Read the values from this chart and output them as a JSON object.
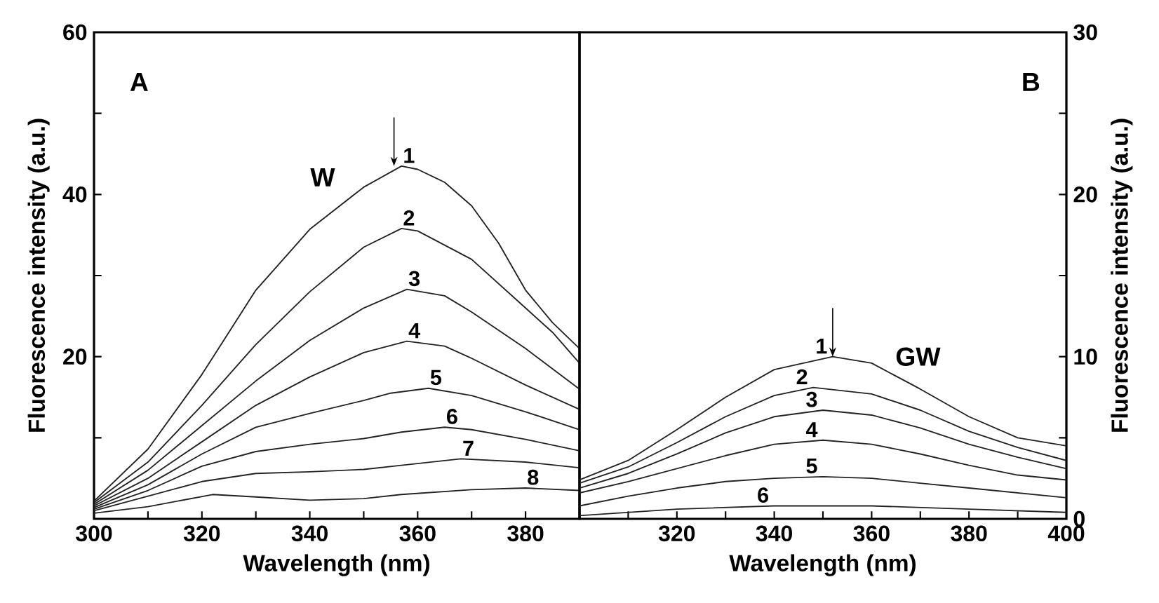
{
  "chart_data": [
    {
      "type": "line",
      "xlabel": "Wavelength (nm)",
      "ylabel": "Fluorescence intensity (a.u.)",
      "annotations": [
        "A",
        "W"
      ],
      "xlim": [
        300,
        390
      ],
      "ylim": [
        0,
        60
      ],
      "xticks": [
        300,
        {
          "value": 310,
          "label": null
        },
        320,
        {
          "value": 330,
          "label": null
        },
        340,
        {
          "value": 350,
          "label": null
        },
        360,
        {
          "value": 370,
          "label": null
        },
        380
      ],
      "yticks": [
        {
          "value": 0,
          "label": null
        },
        {
          "value": 10,
          "label": null
        },
        20,
        {
          "value": 30,
          "label": null
        },
        40,
        {
          "value": 50,
          "label": null
        },
        60
      ],
      "legend": false,
      "grid": false,
      "series": [
        {
          "name": "1",
          "color": "#222222",
          "x": [
            300,
            310,
            320,
            330,
            340,
            350,
            357,
            360,
            365,
            370,
            375,
            380,
            385,
            390
          ],
          "values": [
            2.2,
            8.6,
            17.8,
            28.2,
            35.7,
            40.9,
            43.5,
            43.1,
            41.5,
            38.6,
            34,
            28.2,
            24.2,
            21
          ]
        },
        {
          "name": "2",
          "color": "#222222",
          "x": [
            300,
            310,
            320,
            330,
            340,
            350,
            357,
            360,
            370,
            380,
            385,
            390
          ],
          "values": [
            2,
            7,
            14,
            21.5,
            28,
            33.5,
            35.8,
            35.5,
            32,
            26,
            23,
            19.2
          ]
        },
        {
          "name": "3",
          "color": "#222222",
          "x": [
            300,
            310,
            320,
            330,
            340,
            350,
            358,
            365,
            370,
            380,
            390
          ],
          "values": [
            1.8,
            6,
            11.5,
            17,
            22,
            26,
            28.3,
            27.5,
            25.5,
            21,
            16
          ]
        },
        {
          "name": "4",
          "color": "#222222",
          "x": [
            300,
            310,
            320,
            330,
            340,
            350,
            358,
            365,
            370,
            380,
            390
          ],
          "values": [
            1.6,
            5,
            9.5,
            14,
            17.5,
            20.5,
            21.9,
            21.3,
            19.8,
            16.5,
            13.5
          ]
        },
        {
          "name": "5",
          "color": "#222222",
          "x": [
            300,
            310,
            320,
            330,
            340,
            350,
            355,
            362,
            370,
            380,
            390
          ],
          "values": [
            1.4,
            4.2,
            8,
            11.3,
            13,
            14.6,
            15.5,
            16.1,
            15.2,
            13.2,
            11
          ]
        },
        {
          "name": "6",
          "color": "#222222",
          "x": [
            300,
            310,
            320,
            330,
            340,
            350,
            357,
            365,
            370,
            380,
            390
          ],
          "values": [
            1.2,
            3.5,
            6.5,
            8.3,
            9.2,
            9.9,
            10.7,
            11.3,
            11,
            9.8,
            8.4
          ]
        },
        {
          "name": "7",
          "color": "#222222",
          "x": [
            300,
            310,
            320,
            330,
            340,
            350,
            357,
            368,
            380,
            390
          ],
          "values": [
            1,
            2.8,
            4.6,
            5.6,
            5.8,
            6.1,
            6.6,
            7.4,
            7,
            6.3
          ]
        },
        {
          "name": "8",
          "color": "#222222",
          "x": [
            300,
            310,
            322,
            330,
            340,
            350,
            357,
            370,
            380,
            390
          ],
          "values": [
            0.7,
            1.5,
            3,
            2.7,
            2.3,
            2.5,
            3,
            3.6,
            3.8,
            3.5
          ]
        }
      ]
    },
    {
      "type": "line",
      "xlabel": "Wavelength (nm)",
      "ylabel": "Fluorescence intensity (a.u.)",
      "annotations": [
        "B",
        "GW"
      ],
      "xlim": [
        300,
        400
      ],
      "ylim": [
        0,
        30
      ],
      "xticks": [
        {
          "value": 300,
          "label": null
        },
        {
          "value": 310,
          "label": null
        },
        320,
        {
          "value": 330,
          "label": null
        },
        340,
        {
          "value": 350,
          "label": null
        },
        360,
        {
          "value": 370,
          "label": null
        },
        380,
        {
          "value": 390,
          "label": null
        },
        400
      ],
      "yticks": [
        0,
        {
          "value": 5,
          "label": null
        },
        10,
        {
          "value": 15,
          "label": null
        },
        20,
        {
          "value": 25,
          "label": null
        },
        30
      ],
      "legend": false,
      "grid": false,
      "series": [
        {
          "name": "1",
          "color": "#222222",
          "x": [
            300,
            310,
            320,
            330,
            340,
            352,
            360,
            370,
            380,
            390,
            400
          ],
          "values": [
            2.4,
            3.6,
            5.5,
            7.5,
            9.2,
            10,
            9.6,
            8,
            6.3,
            5,
            4.5
          ]
        },
        {
          "name": "2",
          "color": "#222222",
          "x": [
            300,
            310,
            320,
            330,
            340,
            348,
            360,
            370,
            380,
            390,
            400
          ],
          "values": [
            2.2,
            3.2,
            4.7,
            6.3,
            7.6,
            8.1,
            7.7,
            6.7,
            5.4,
            4.4,
            3.6
          ]
        },
        {
          "name": "3",
          "color": "#222222",
          "x": [
            300,
            310,
            320,
            330,
            340,
            350,
            360,
            370,
            380,
            390,
            400
          ],
          "values": [
            1.9,
            2.8,
            4,
            5.3,
            6.3,
            6.7,
            6.4,
            5.6,
            4.6,
            3.8,
            3.1
          ]
        },
        {
          "name": "4",
          "color": "#222222",
          "x": [
            300,
            310,
            320,
            330,
            340,
            350,
            360,
            370,
            380,
            390,
            400
          ],
          "values": [
            1.6,
            2.3,
            3.1,
            3.9,
            4.6,
            4.85,
            4.6,
            4,
            3.3,
            2.7,
            2.4
          ]
        },
        {
          "name": "5",
          "color": "#222222",
          "x": [
            300,
            310,
            320,
            330,
            340,
            350,
            360,
            370,
            380,
            390,
            400
          ],
          "values": [
            0.8,
            1.4,
            1.9,
            2.3,
            2.5,
            2.6,
            2.5,
            2.2,
            1.9,
            1.6,
            1.3
          ]
        },
        {
          "name": "6",
          "color": "#222222",
          "x": [
            300,
            320,
            340,
            360,
            380,
            400
          ],
          "values": [
            0.2,
            0.6,
            0.8,
            0.8,
            0.6,
            0.4
          ]
        }
      ]
    }
  ]
}
